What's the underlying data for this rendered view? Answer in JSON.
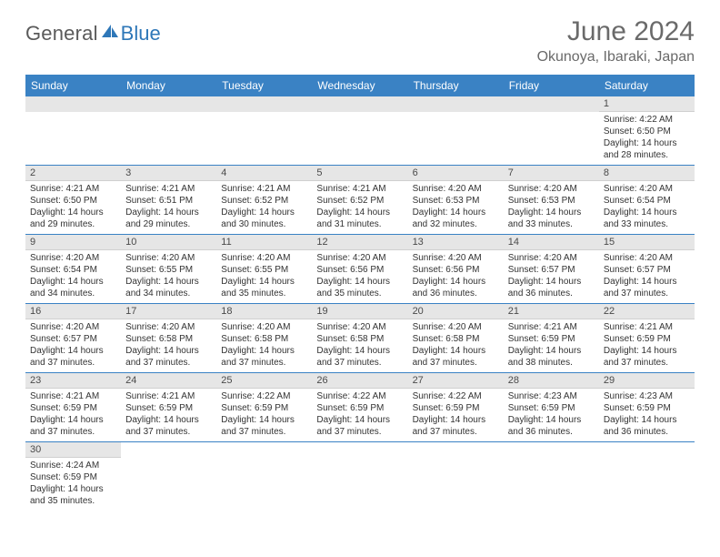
{
  "logo": {
    "general": "General",
    "blue": "Blue"
  },
  "title": "June 2024",
  "subtitle": "Okunoya, Ibaraki, Japan",
  "colors": {
    "header_bg": "#3a82c4",
    "header_text": "#ffffff",
    "daynum_bg": "#e6e6e6",
    "row_border": "#3a82c4",
    "logo_blue": "#2e77b8",
    "logo_grey": "#5a5a5a",
    "title_color": "#6a6a6a"
  },
  "weekdays": [
    "Sunday",
    "Monday",
    "Tuesday",
    "Wednesday",
    "Thursday",
    "Friday",
    "Saturday"
  ],
  "weeks": [
    [
      {
        "n": "",
        "sr": "",
        "ss": "",
        "dl": ""
      },
      {
        "n": "",
        "sr": "",
        "ss": "",
        "dl": ""
      },
      {
        "n": "",
        "sr": "",
        "ss": "",
        "dl": ""
      },
      {
        "n": "",
        "sr": "",
        "ss": "",
        "dl": ""
      },
      {
        "n": "",
        "sr": "",
        "ss": "",
        "dl": ""
      },
      {
        "n": "",
        "sr": "",
        "ss": "",
        "dl": ""
      },
      {
        "n": "1",
        "sr": "Sunrise: 4:22 AM",
        "ss": "Sunset: 6:50 PM",
        "dl": "Daylight: 14 hours and 28 minutes."
      }
    ],
    [
      {
        "n": "2",
        "sr": "Sunrise: 4:21 AM",
        "ss": "Sunset: 6:50 PM",
        "dl": "Daylight: 14 hours and 29 minutes."
      },
      {
        "n": "3",
        "sr": "Sunrise: 4:21 AM",
        "ss": "Sunset: 6:51 PM",
        "dl": "Daylight: 14 hours and 29 minutes."
      },
      {
        "n": "4",
        "sr": "Sunrise: 4:21 AM",
        "ss": "Sunset: 6:52 PM",
        "dl": "Daylight: 14 hours and 30 minutes."
      },
      {
        "n": "5",
        "sr": "Sunrise: 4:21 AM",
        "ss": "Sunset: 6:52 PM",
        "dl": "Daylight: 14 hours and 31 minutes."
      },
      {
        "n": "6",
        "sr": "Sunrise: 4:20 AM",
        "ss": "Sunset: 6:53 PM",
        "dl": "Daylight: 14 hours and 32 minutes."
      },
      {
        "n": "7",
        "sr": "Sunrise: 4:20 AM",
        "ss": "Sunset: 6:53 PM",
        "dl": "Daylight: 14 hours and 33 minutes."
      },
      {
        "n": "8",
        "sr": "Sunrise: 4:20 AM",
        "ss": "Sunset: 6:54 PM",
        "dl": "Daylight: 14 hours and 33 minutes."
      }
    ],
    [
      {
        "n": "9",
        "sr": "Sunrise: 4:20 AM",
        "ss": "Sunset: 6:54 PM",
        "dl": "Daylight: 14 hours and 34 minutes."
      },
      {
        "n": "10",
        "sr": "Sunrise: 4:20 AM",
        "ss": "Sunset: 6:55 PM",
        "dl": "Daylight: 14 hours and 34 minutes."
      },
      {
        "n": "11",
        "sr": "Sunrise: 4:20 AM",
        "ss": "Sunset: 6:55 PM",
        "dl": "Daylight: 14 hours and 35 minutes."
      },
      {
        "n": "12",
        "sr": "Sunrise: 4:20 AM",
        "ss": "Sunset: 6:56 PM",
        "dl": "Daylight: 14 hours and 35 minutes."
      },
      {
        "n": "13",
        "sr": "Sunrise: 4:20 AM",
        "ss": "Sunset: 6:56 PM",
        "dl": "Daylight: 14 hours and 36 minutes."
      },
      {
        "n": "14",
        "sr": "Sunrise: 4:20 AM",
        "ss": "Sunset: 6:57 PM",
        "dl": "Daylight: 14 hours and 36 minutes."
      },
      {
        "n": "15",
        "sr": "Sunrise: 4:20 AM",
        "ss": "Sunset: 6:57 PM",
        "dl": "Daylight: 14 hours and 37 minutes."
      }
    ],
    [
      {
        "n": "16",
        "sr": "Sunrise: 4:20 AM",
        "ss": "Sunset: 6:57 PM",
        "dl": "Daylight: 14 hours and 37 minutes."
      },
      {
        "n": "17",
        "sr": "Sunrise: 4:20 AM",
        "ss": "Sunset: 6:58 PM",
        "dl": "Daylight: 14 hours and 37 minutes."
      },
      {
        "n": "18",
        "sr": "Sunrise: 4:20 AM",
        "ss": "Sunset: 6:58 PM",
        "dl": "Daylight: 14 hours and 37 minutes."
      },
      {
        "n": "19",
        "sr": "Sunrise: 4:20 AM",
        "ss": "Sunset: 6:58 PM",
        "dl": "Daylight: 14 hours and 37 minutes."
      },
      {
        "n": "20",
        "sr": "Sunrise: 4:20 AM",
        "ss": "Sunset: 6:58 PM",
        "dl": "Daylight: 14 hours and 37 minutes."
      },
      {
        "n": "21",
        "sr": "Sunrise: 4:21 AM",
        "ss": "Sunset: 6:59 PM",
        "dl": "Daylight: 14 hours and 38 minutes."
      },
      {
        "n": "22",
        "sr": "Sunrise: 4:21 AM",
        "ss": "Sunset: 6:59 PM",
        "dl": "Daylight: 14 hours and 37 minutes."
      }
    ],
    [
      {
        "n": "23",
        "sr": "Sunrise: 4:21 AM",
        "ss": "Sunset: 6:59 PM",
        "dl": "Daylight: 14 hours and 37 minutes."
      },
      {
        "n": "24",
        "sr": "Sunrise: 4:21 AM",
        "ss": "Sunset: 6:59 PM",
        "dl": "Daylight: 14 hours and 37 minutes."
      },
      {
        "n": "25",
        "sr": "Sunrise: 4:22 AM",
        "ss": "Sunset: 6:59 PM",
        "dl": "Daylight: 14 hours and 37 minutes."
      },
      {
        "n": "26",
        "sr": "Sunrise: 4:22 AM",
        "ss": "Sunset: 6:59 PM",
        "dl": "Daylight: 14 hours and 37 minutes."
      },
      {
        "n": "27",
        "sr": "Sunrise: 4:22 AM",
        "ss": "Sunset: 6:59 PM",
        "dl": "Daylight: 14 hours and 37 minutes."
      },
      {
        "n": "28",
        "sr": "Sunrise: 4:23 AM",
        "ss": "Sunset: 6:59 PM",
        "dl": "Daylight: 14 hours and 36 minutes."
      },
      {
        "n": "29",
        "sr": "Sunrise: 4:23 AM",
        "ss": "Sunset: 6:59 PM",
        "dl": "Daylight: 14 hours and 36 minutes."
      }
    ],
    [
      {
        "n": "30",
        "sr": "Sunrise: 4:24 AM",
        "ss": "Sunset: 6:59 PM",
        "dl": "Daylight: 14 hours and 35 minutes."
      },
      {
        "n": "",
        "sr": "",
        "ss": "",
        "dl": ""
      },
      {
        "n": "",
        "sr": "",
        "ss": "",
        "dl": ""
      },
      {
        "n": "",
        "sr": "",
        "ss": "",
        "dl": ""
      },
      {
        "n": "",
        "sr": "",
        "ss": "",
        "dl": ""
      },
      {
        "n": "",
        "sr": "",
        "ss": "",
        "dl": ""
      },
      {
        "n": "",
        "sr": "",
        "ss": "",
        "dl": ""
      }
    ]
  ]
}
